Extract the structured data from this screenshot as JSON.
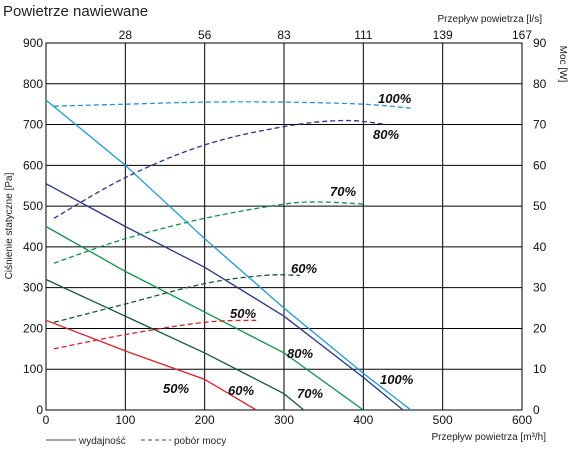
{
  "chart_data": {
    "type": "line",
    "title": "Powietrze nawiewane",
    "xlabel": "Przepływ powietrza [m³/h]",
    "x2label": "Przepływ powietrza [l/s]",
    "ylabel": "Ciśnienie statyczne [Pa]",
    "y2label": "Moc [W]",
    "xlim": [
      0,
      600
    ],
    "ylim": [
      0,
      900
    ],
    "y2lim": [
      0,
      90
    ],
    "grid": true,
    "x_ticks": [
      "0",
      "100",
      "200",
      "300",
      "400",
      "500",
      "600"
    ],
    "x2_ticks": [
      "28",
      "56",
      "83",
      "111",
      "139",
      "167"
    ],
    "y_ticks": [
      "0",
      "100",
      "200",
      "300",
      "400",
      "500",
      "600",
      "700",
      "800",
      "900"
    ],
    "y2_ticks": [
      "0",
      "10",
      "20",
      "30",
      "40",
      "50",
      "60",
      "70",
      "80",
      "90"
    ],
    "legend": [
      {
        "label": "wydajność",
        "style": "solid"
      },
      {
        "label": "pobór mocy",
        "style": "dashed"
      }
    ],
    "series": [
      {
        "kind": "pressure",
        "label": "100%",
        "color": "#1a9bd7",
        "x": [
          0,
          100,
          200,
          300,
          400,
          460
        ],
        "y": [
          760,
          600,
          420,
          250,
          90,
          0
        ]
      },
      {
        "kind": "pressure",
        "label": "80%",
        "color": "#27368f",
        "x": [
          0,
          100,
          200,
          300,
          400,
          450
        ],
        "y": [
          555,
          450,
          350,
          230,
          80,
          0
        ]
      },
      {
        "kind": "pressure",
        "label": "70%",
        "color": "#0b9444",
        "x": [
          0,
          100,
          200,
          300,
          400
        ],
        "y": [
          450,
          340,
          240,
          140,
          0
        ]
      },
      {
        "kind": "pressure",
        "label": "60%",
        "color": "#145a32",
        "x": [
          0,
          100,
          200,
          300,
          325
        ],
        "y": [
          320,
          230,
          140,
          40,
          0
        ]
      },
      {
        "kind": "pressure",
        "label": "50%",
        "color": "#e31e24",
        "x": [
          0,
          100,
          200,
          265
        ],
        "y": [
          220,
          145,
          75,
          0
        ]
      },
      {
        "kind": "power",
        "label": "100%",
        "color": "#1a9bd7",
        "x": [
          10,
          100,
          200,
          300,
          400,
          460
        ],
        "y2": [
          74.5,
          75,
          75.5,
          75.5,
          75,
          74
        ]
      },
      {
        "kind": "power",
        "label": "80%",
        "color": "#27368f",
        "x": [
          10,
          100,
          200,
          300,
          375,
          430
        ],
        "y2": [
          47,
          57,
          65,
          69.5,
          71,
          70
        ]
      },
      {
        "kind": "power",
        "label": "70%",
        "color": "#0b9444",
        "x": [
          10,
          100,
          200,
          300,
          345,
          400
        ],
        "y2": [
          36,
          42,
          47,
          50.5,
          51,
          50.5
        ]
      },
      {
        "kind": "power",
        "label": "60%",
        "color": "#145a32",
        "x": [
          10,
          100,
          200,
          275,
          320
        ],
        "y2": [
          21.5,
          26,
          31,
          33,
          33
        ]
      },
      {
        "kind": "power",
        "label": "50%",
        "color": "#e31e24",
        "x": [
          10,
          100,
          200,
          265
        ],
        "y2": [
          15,
          18.5,
          21.5,
          22
        ]
      }
    ],
    "annotations": [
      "100%",
      "80%",
      "70%",
      "60%",
      "50%",
      "50%",
      "60%",
      "70%",
      "80%",
      "100%"
    ]
  }
}
